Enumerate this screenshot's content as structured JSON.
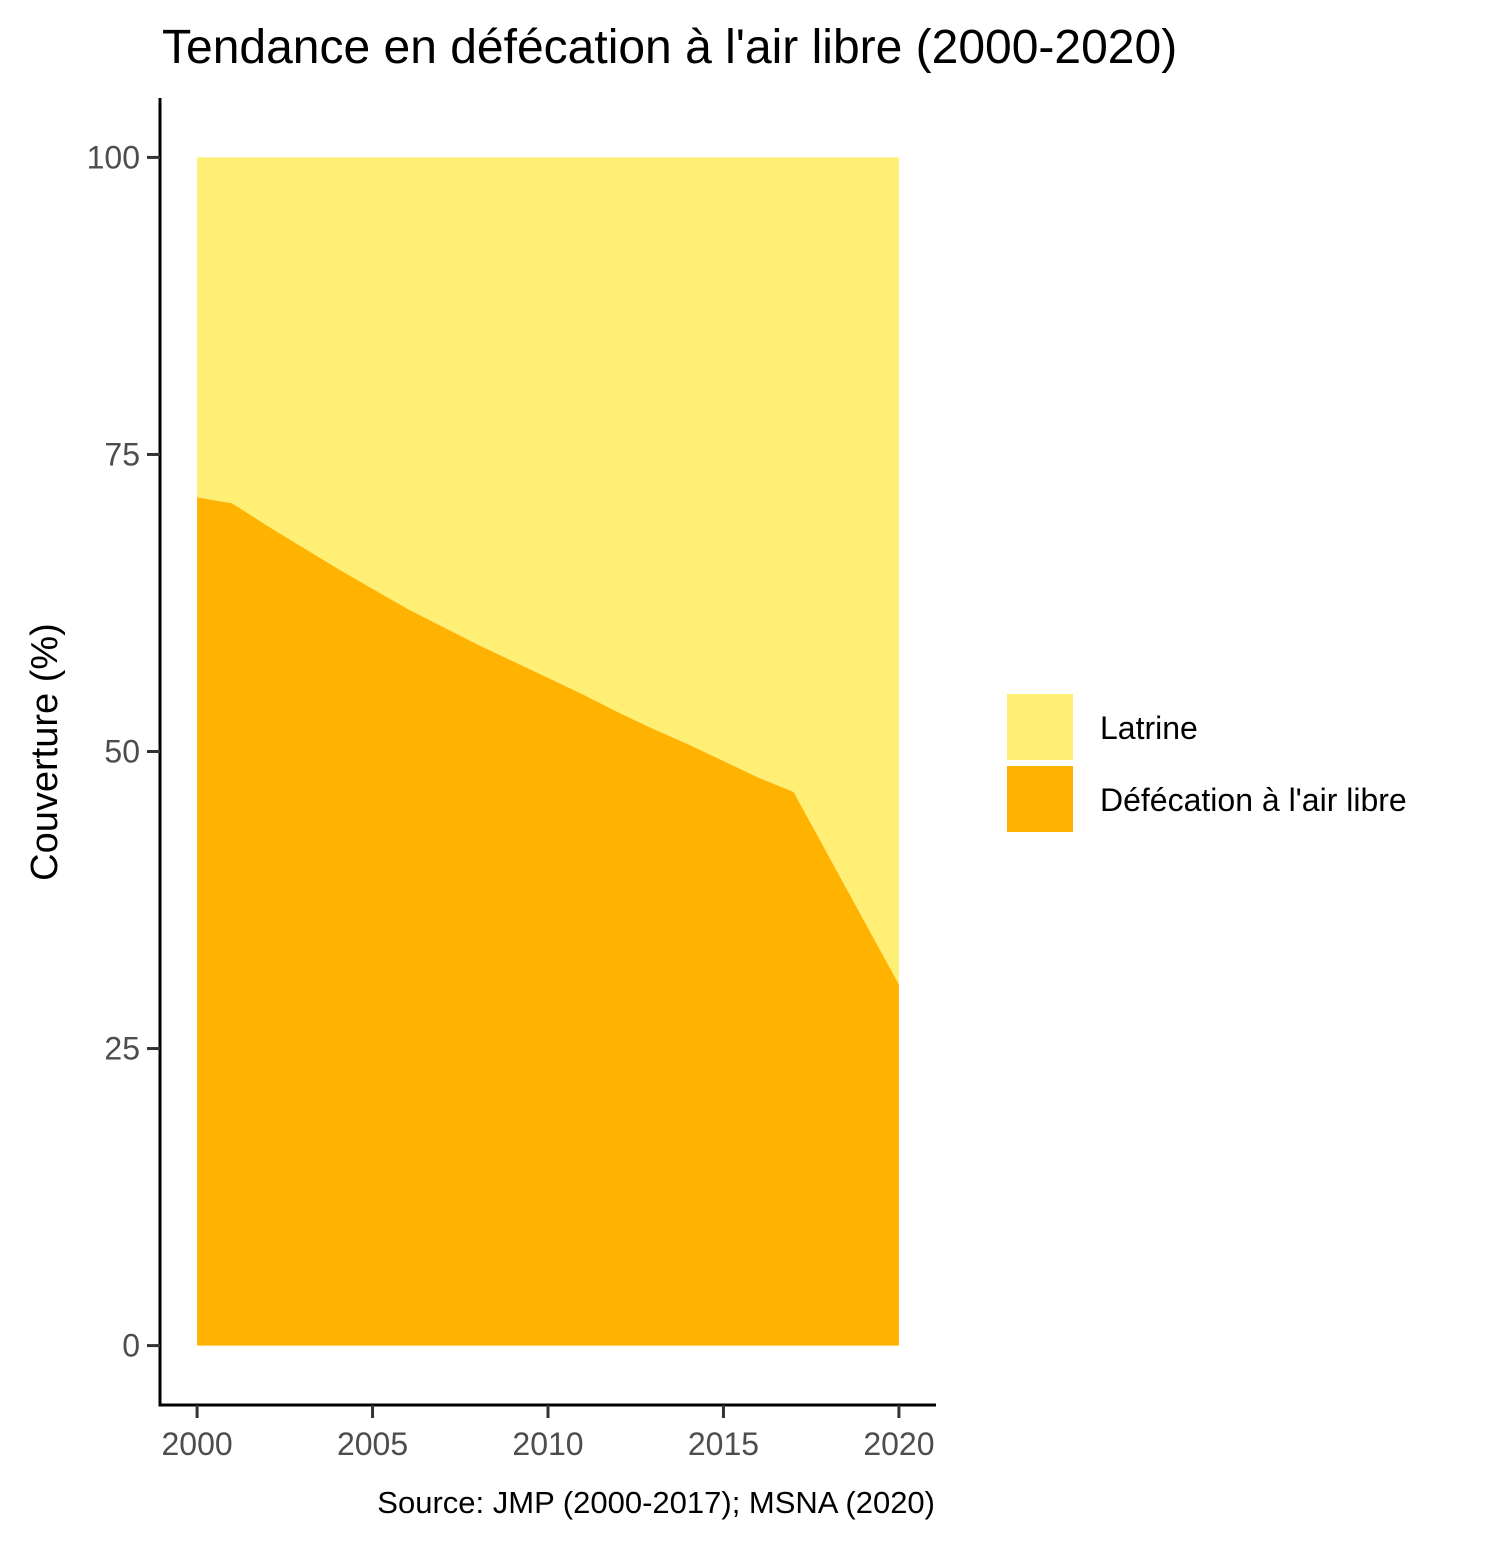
{
  "chart_data": {
    "type": "area",
    "stacked": true,
    "title": "Tendance en défécation à l'air libre (2000-2020)",
    "xlabel": "",
    "ylabel": "Couverture (%)",
    "caption": "Source: JMP (2000-2017); MSNA (2020)",
    "xlim": [
      1999,
      2021
    ],
    "ylim": [
      -5,
      105
    ],
    "x_ticks": [
      2000,
      2005,
      2010,
      2015,
      2020
    ],
    "y_ticks": [
      0,
      25,
      50,
      75,
      100
    ],
    "x": [
      2000,
      2001,
      2002,
      2003,
      2004,
      2005,
      2006,
      2007,
      2008,
      2009,
      2010,
      2011,
      2012,
      2013,
      2014,
      2015,
      2016,
      2017,
      2020
    ],
    "series": [
      {
        "name": "Défécation à l'air libre",
        "color": "#FFB300",
        "values": [
          71.4,
          70.9,
          69.0,
          67.2,
          65.4,
          63.7,
          62.0,
          60.5,
          59.0,
          57.6,
          56.2,
          54.8,
          53.3,
          51.9,
          50.6,
          49.2,
          47.8,
          46.6,
          30.4
        ]
      },
      {
        "name": "Latrine",
        "color": "#FFEF75",
        "values": [
          28.6,
          29.1,
          31.0,
          32.8,
          34.6,
          36.3,
          38.0,
          39.5,
          41.0,
          42.4,
          43.8,
          45.2,
          46.7,
          48.1,
          49.4,
          50.8,
          52.2,
          53.4,
          69.6
        ]
      }
    ],
    "legend": {
      "placement": "right",
      "entries": [
        "Latrine",
        "Défécation à l'air libre"
      ]
    },
    "grid": false
  }
}
